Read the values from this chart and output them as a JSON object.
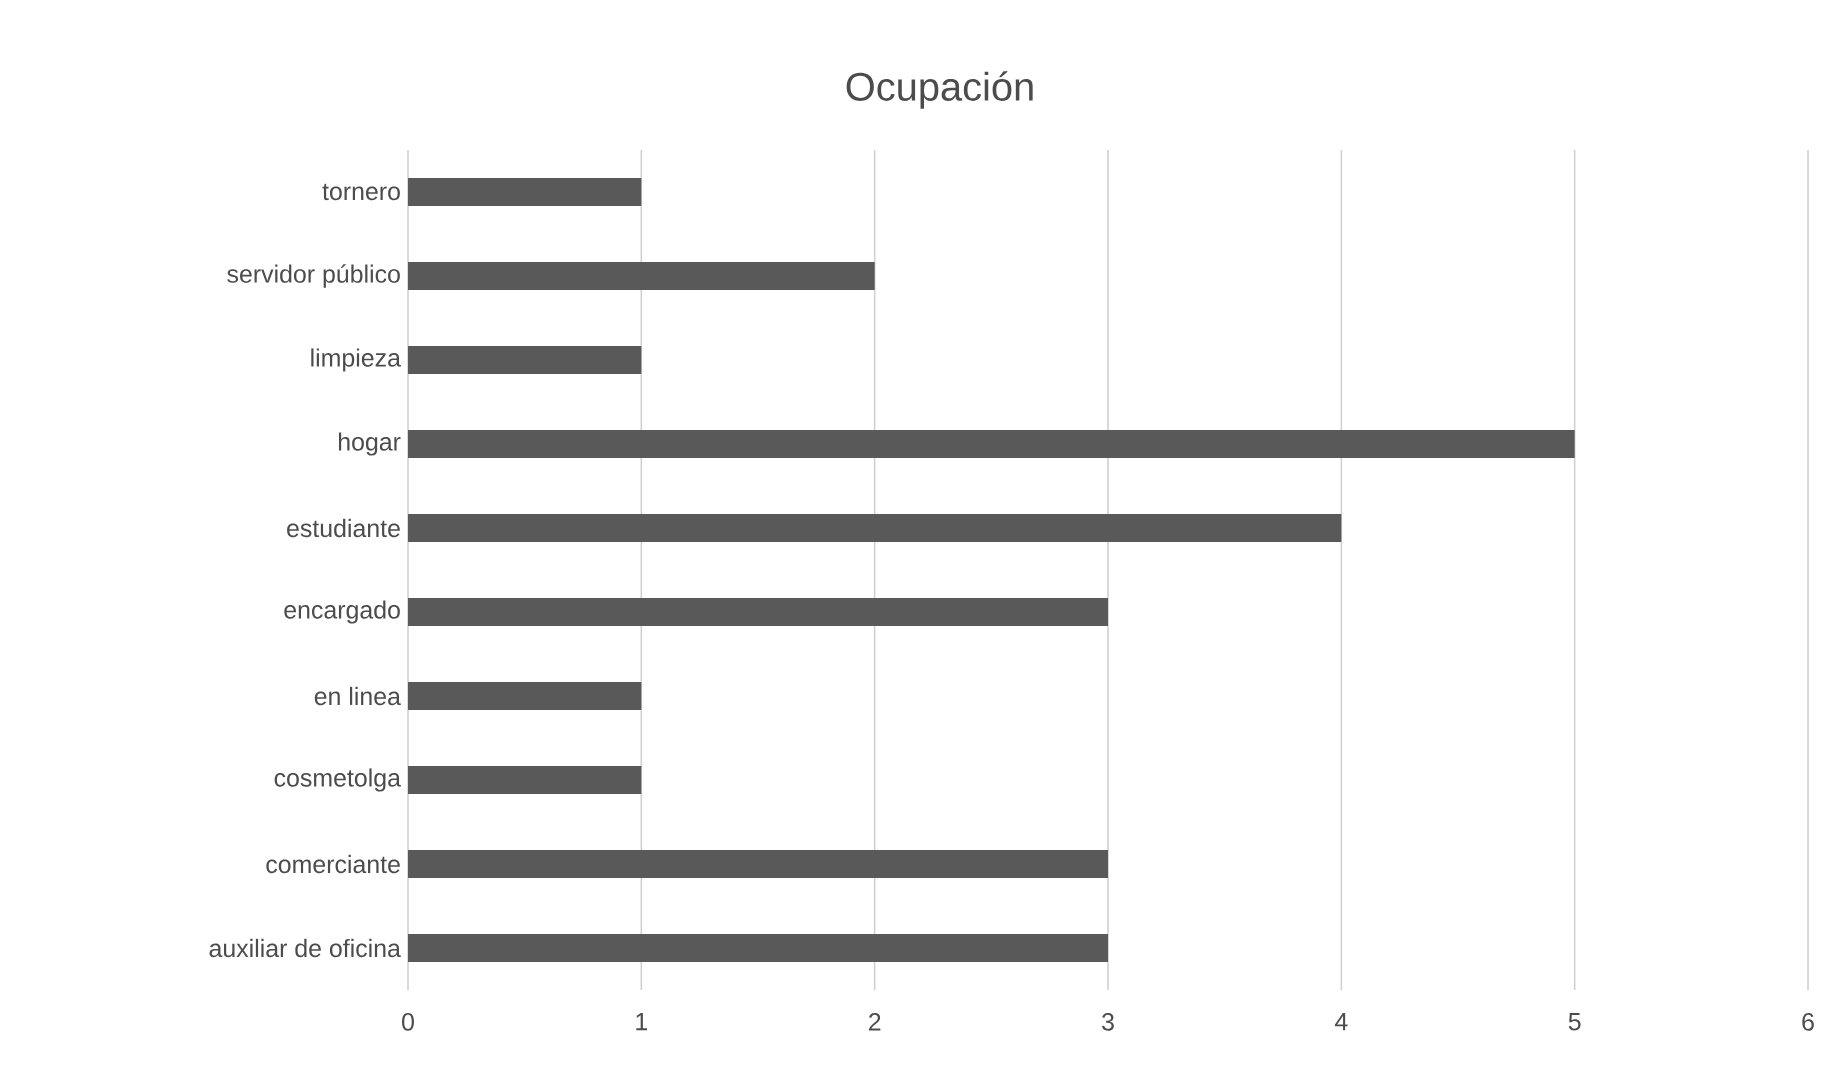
{
  "chart_data": {
    "type": "bar",
    "orientation": "horizontal",
    "title": "Ocupación",
    "categories": [
      "tornero",
      "servidor público",
      "limpieza",
      "hogar",
      "estudiante",
      "encargado",
      "en linea",
      "cosmetolga",
      "comerciante",
      "auxiliar de oficina"
    ],
    "values": [
      1,
      2,
      1,
      5,
      4,
      3,
      1,
      1,
      3,
      3
    ],
    "color": "#595959",
    "xlim": [
      0,
      6
    ],
    "xticks": [
      0,
      1,
      2,
      3,
      4,
      5,
      6
    ],
    "grid": "x"
  }
}
